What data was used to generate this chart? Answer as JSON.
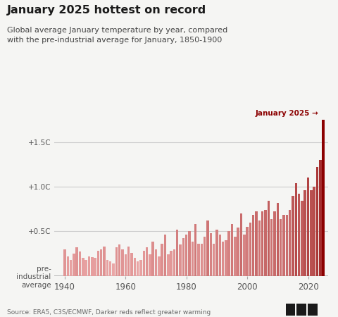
{
  "title": "January 2025 hottest on record",
  "subtitle": "Global average January temperature by year, compared\nwith the pre-industrial average for January, 1850-1900",
  "annotation": "January 2025 →",
  "source": "Source: ERA5, C3S/ECMWF, Darker reds reflect greater warming",
  "ytick_labels": [
    "+1.5C",
    "+1.0C",
    "+0.5C",
    "pre-\nindustrial\naverage"
  ],
  "ytick_values": [
    1.5,
    1.0,
    0.5,
    0.0
  ],
  "background_color": "#f5f5f3",
  "title_color": "#1a1a1a",
  "subtitle_color": "#444444",
  "annotation_color": "#8b0000",
  "source_color": "#666666",
  "gridline_color": "#cccccc",
  "years": [
    1940,
    1941,
    1942,
    1943,
    1944,
    1945,
    1946,
    1947,
    1948,
    1949,
    1950,
    1951,
    1952,
    1953,
    1954,
    1955,
    1956,
    1957,
    1958,
    1959,
    1960,
    1961,
    1962,
    1963,
    1964,
    1965,
    1966,
    1967,
    1968,
    1969,
    1970,
    1971,
    1972,
    1973,
    1974,
    1975,
    1976,
    1977,
    1978,
    1979,
    1980,
    1981,
    1982,
    1983,
    1984,
    1985,
    1986,
    1987,
    1988,
    1989,
    1990,
    1991,
    1992,
    1993,
    1994,
    1995,
    1996,
    1997,
    1998,
    1999,
    2000,
    2001,
    2002,
    2003,
    2004,
    2005,
    2006,
    2007,
    2008,
    2009,
    2010,
    2011,
    2012,
    2013,
    2014,
    2015,
    2016,
    2017,
    2018,
    2019,
    2020,
    2021,
    2022,
    2023,
    2024,
    2025
  ],
  "values": [
    0.3,
    0.22,
    0.18,
    0.25,
    0.32,
    0.27,
    0.2,
    0.18,
    0.22,
    0.21,
    0.2,
    0.28,
    0.3,
    0.33,
    0.18,
    0.16,
    0.14,
    0.32,
    0.35,
    0.3,
    0.24,
    0.33,
    0.26,
    0.2,
    0.16,
    0.18,
    0.28,
    0.32,
    0.24,
    0.38,
    0.3,
    0.22,
    0.36,
    0.46,
    0.24,
    0.28,
    0.3,
    0.52,
    0.35,
    0.42,
    0.46,
    0.5,
    0.38,
    0.58,
    0.36,
    0.36,
    0.44,
    0.62,
    0.48,
    0.36,
    0.52,
    0.46,
    0.38,
    0.4,
    0.5,
    0.58,
    0.44,
    0.54,
    0.7,
    0.46,
    0.55,
    0.6,
    0.68,
    0.72,
    0.62,
    0.72,
    0.74,
    0.84,
    0.64,
    0.72,
    0.82,
    0.64,
    0.68,
    0.68,
    0.74,
    0.9,
    1.04,
    0.92,
    0.84,
    0.96,
    1.1,
    0.96,
    1.0,
    1.22,
    1.3,
    1.75
  ],
  "ylim": [
    0,
    1.85
  ],
  "xlim": [
    1936.5,
    2026.5
  ],
  "xticks": [
    1940,
    1960,
    1980,
    2000,
    2020
  ],
  "color_low": [
    242,
    180,
    180
  ],
  "color_high": [
    139,
    0,
    0
  ],
  "vmin": 0.0,
  "vmax": 1.75,
  "bar_width": 0.8
}
